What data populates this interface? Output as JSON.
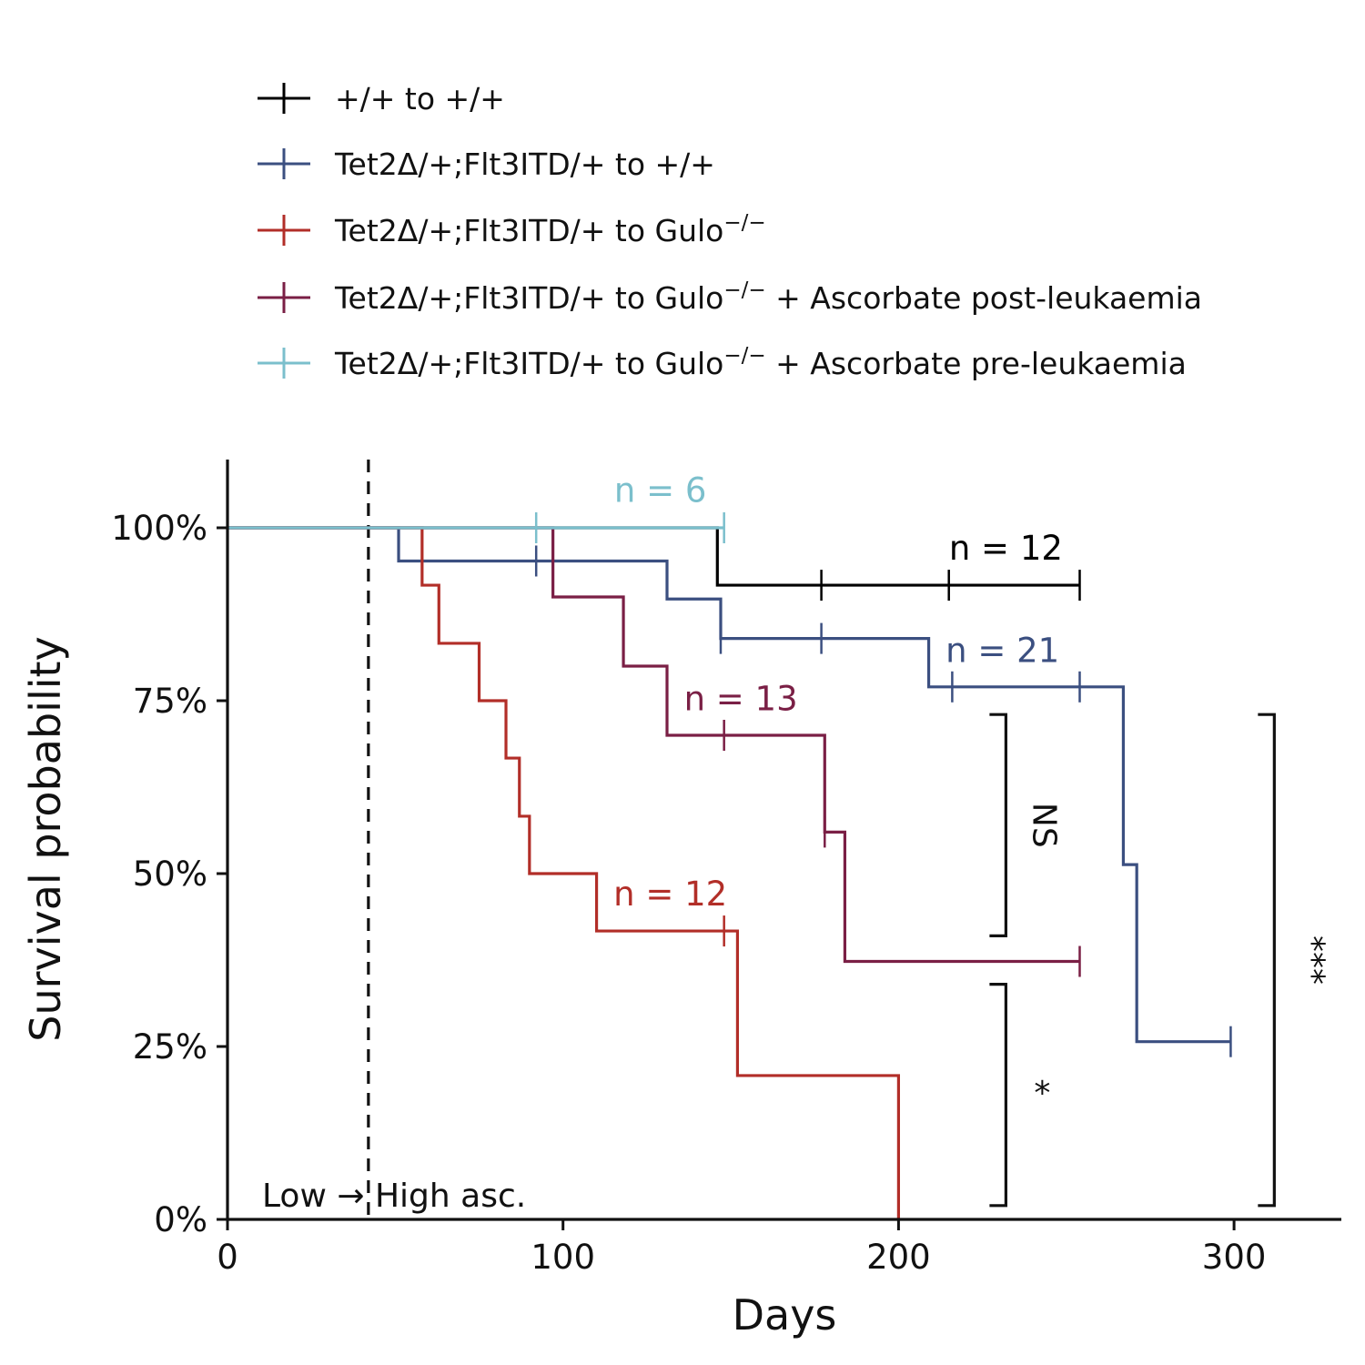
{
  "chart_data": {
    "type": "line",
    "subtype": "kaplan-meier",
    "title": "",
    "xlabel": "Days",
    "ylabel": "Survival probability",
    "xlim": [
      0,
      330
    ],
    "ylim": [
      0,
      1.1
    ],
    "xticks": [
      {
        "value": 0,
        "label": "0"
      },
      {
        "value": 100,
        "label": "100"
      },
      {
        "value": 200,
        "label": "200"
      },
      {
        "value": 300,
        "label": "300"
      }
    ],
    "yticks": [
      {
        "value": 0,
        "label": "0%"
      },
      {
        "value": 0.25,
        "label": "25%"
      },
      {
        "value": 0.5,
        "label": "50%"
      },
      {
        "value": 0.75,
        "label": "75%"
      },
      {
        "value": 1.0,
        "label": "100%"
      }
    ],
    "grid": false,
    "legend_position": "top",
    "series": [
      {
        "name": "+/+ to +/+",
        "color": "#000000",
        "steps": [
          [
            0,
            1.0
          ],
          [
            146,
            0.917
          ],
          [
            254,
            0.917
          ]
        ],
        "censor": [
          [
            177,
            0.917
          ],
          [
            215,
            0.917
          ],
          [
            254,
            0.917
          ]
        ],
        "n_label": "n = 12",
        "n_label_pos": [
          232,
          0.97
        ]
      },
      {
        "name": "Tet2Δ/+;Flt3ITD/+ to +/+",
        "color": "#3B4F80",
        "steps": [
          [
            0,
            1.0
          ],
          [
            51,
            0.952
          ],
          [
            131,
            0.897
          ],
          [
            147,
            0.84
          ],
          [
            209,
            0.77
          ],
          [
            267,
            0.513
          ],
          [
            271,
            0.257
          ],
          [
            299,
            0.257
          ]
        ],
        "censor": [
          [
            92,
            0.952
          ],
          [
            147,
            0.84
          ],
          [
            177,
            0.84
          ],
          [
            216,
            0.77
          ],
          [
            254,
            0.77
          ],
          [
            299,
            0.257
          ]
        ],
        "n_label": "n = 21",
        "n_label_pos": [
          231,
          0.822
        ]
      },
      {
        "name": "Tet2Δ/+;Flt3ITD/+ to Gulo",
        "name_sup": "−/−",
        "color": "#B22E28",
        "steps": [
          [
            0,
            1.0
          ],
          [
            58,
            0.917
          ],
          [
            63,
            0.833
          ],
          [
            75,
            0.75
          ],
          [
            83,
            0.667
          ],
          [
            87,
            0.583
          ],
          [
            90,
            0.5
          ],
          [
            110,
            0.417
          ],
          [
            152,
            0.208
          ],
          [
            200,
            0.0
          ]
        ],
        "censor": [
          [
            148,
            0.417
          ]
        ],
        "n_label": "n = 12",
        "n_label_pos": [
          132,
          0.47
        ]
      },
      {
        "name": "Tet2Δ/+;Flt3ITD/+ to Gulo",
        "name_sup": "−/−",
        "name_suffix": " + Ascorbate post-leukaemia",
        "color": "#7A1F45",
        "steps": [
          [
            0,
            1.0
          ],
          [
            97,
            0.9
          ],
          [
            118,
            0.8
          ],
          [
            131,
            0.7
          ],
          [
            178,
            0.56
          ],
          [
            184,
            0.373
          ],
          [
            254,
            0.373
          ]
        ],
        "censor": [
          [
            148,
            0.7
          ],
          [
            178,
            0.56
          ],
          [
            254,
            0.373
          ]
        ],
        "n_label": "n = 13",
        "n_label_pos": [
          153,
          0.752
        ]
      },
      {
        "name": "Tet2Δ/+;Flt3ITD/+ to Gulo",
        "name_sup": "−/−",
        "name_suffix": " + Ascorbate pre-leukaemia",
        "color": "#7BBFCC",
        "steps": [
          [
            0,
            1.0
          ],
          [
            148,
            1.0
          ]
        ],
        "censor": [
          [
            92,
            1.0
          ],
          [
            148,
            1.0
          ]
        ],
        "n_label": "n = 6",
        "n_label_pos": [
          129,
          1.053
        ]
      }
    ],
    "vline": {
      "x": 42,
      "style": "dashed"
    },
    "annotation": {
      "text": "Low → High asc.",
      "pos": [
        10,
        0.02
      ]
    },
    "brackets": [
      {
        "label": "NS",
        "x": 232,
        "y0": 0.41,
        "y1": 0.73,
        "rotate": 90
      },
      {
        "label": "*",
        "x": 232,
        "y0": 0.02,
        "y1": 0.34,
        "rotate": 0
      },
      {
        "label": "***",
        "x": 312,
        "y0": 0.02,
        "y1": 0.73,
        "rotate": 90
      }
    ]
  }
}
